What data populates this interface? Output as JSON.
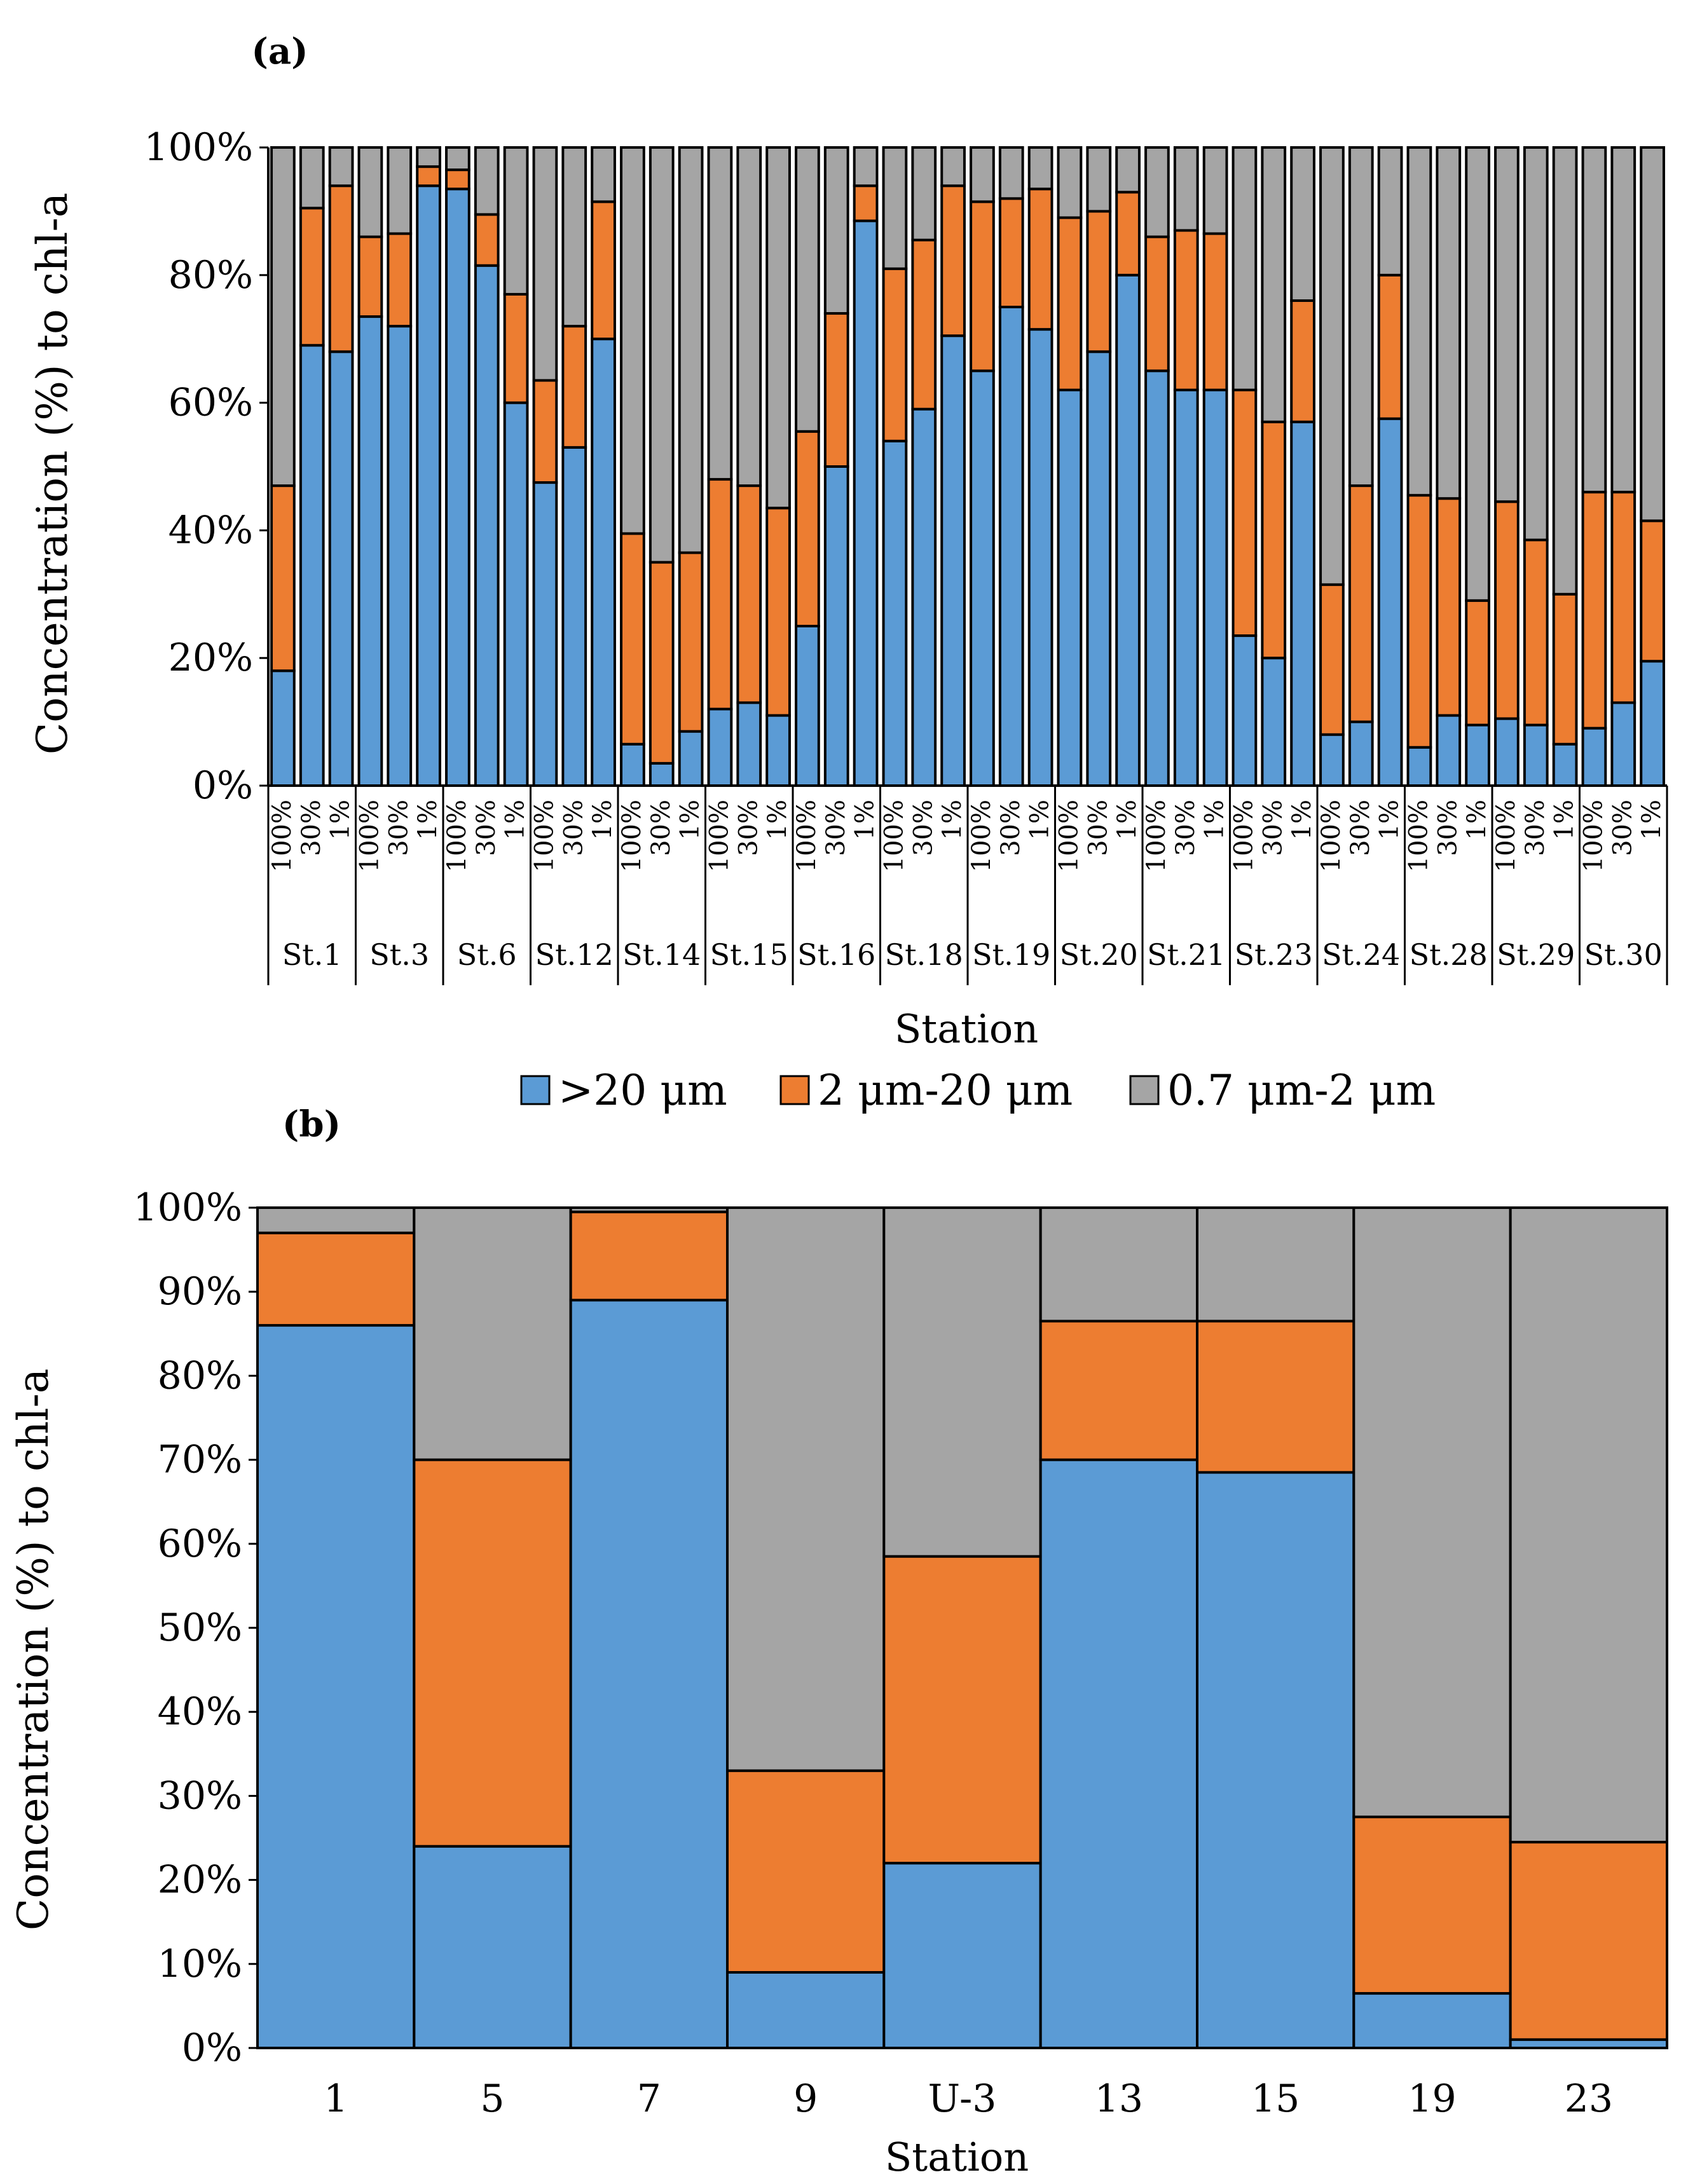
{
  "colors": {
    "gt20": "#5b9bd5",
    "mid": "#ed7d31",
    "small": "#a5a5a5",
    "outline": "#000000"
  },
  "legend": [
    {
      "key": "gt20",
      "label": ">20 μm"
    },
    {
      "key": "mid",
      "label": "2 μm-20 μm"
    },
    {
      "key": "small",
      "label": "0.7 μm-2 μm"
    }
  ],
  "chart_data": [
    {
      "type": "bar",
      "stacked": true,
      "panel_label": "(a)",
      "xlabel": "Station",
      "ylabel": "Concentration (%) to chl-a",
      "ylim": [
        0,
        100
      ],
      "yticks": [
        "0%",
        "20%",
        "40%",
        "60%",
        "80%",
        "100%"
      ],
      "depth_labels": [
        "100%",
        "30%",
        "1%"
      ],
      "stations": [
        "St.1",
        "St.3",
        "St.6",
        "St.12",
        "St.14",
        "St.15",
        "St.16",
        "St.18",
        "St.19",
        "St.20",
        "St.21",
        "St.23",
        "St.24",
        "St.28",
        "St.29",
        "St.30"
      ],
      "series": [
        {
          "name": ">20 μm",
          "key": "gt20",
          "values": [
            18,
            69,
            68,
            73.5,
            72,
            94,
            93.5,
            81.5,
            60,
            47.5,
            53,
            70,
            6.5,
            3.5,
            8.5,
            12,
            13,
            11,
            25,
            50,
            88.5,
            54,
            59,
            70.5,
            65,
            75,
            71.5,
            62,
            68,
            80,
            65,
            62,
            62,
            23.5,
            20,
            57,
            8,
            10,
            57.5,
            6,
            11,
            9.5,
            10.5,
            9.5,
            6.5,
            9,
            13,
            19.5
          ]
        },
        {
          "name": "2 μm-20 μm",
          "key": "mid",
          "values": [
            29,
            21.5,
            26,
            12.5,
            14.5,
            3,
            3,
            8,
            17,
            16,
            19,
            21.5,
            33,
            31.5,
            28,
            36,
            34,
            32.5,
            30.5,
            24,
            5.5,
            27,
            26.5,
            23.5,
            26.5,
            17,
            22,
            27,
            22,
            13,
            21,
            25,
            24.5,
            38.5,
            37,
            19,
            23.5,
            37,
            22.5,
            39.5,
            34,
            19.5,
            34,
            29,
            23.5,
            37,
            33,
            22
          ]
        },
        {
          "name": "0.7 μm-2 μm",
          "key": "small",
          "values": [
            53,
            9.5,
            6,
            14,
            13.5,
            3,
            3.5,
            10.5,
            23,
            36.5,
            28,
            8.5,
            60.5,
            65,
            63.5,
            52,
            53,
            56.5,
            44.5,
            26,
            6,
            19,
            14.5,
            6,
            8.5,
            8,
            6.5,
            11,
            10,
            7,
            14,
            13,
            13.5,
            38,
            43,
            24,
            68.5,
            53,
            20,
            54.5,
            55,
            71,
            55.5,
            61.5,
            70,
            54,
            54,
            58.5
          ]
        }
      ]
    },
    {
      "type": "bar",
      "stacked": true,
      "panel_label": "(b)",
      "xlabel": "Station",
      "ylabel": "Concentration (%) to chl-a",
      "ylim": [
        0,
        100
      ],
      "yticks": [
        "0%",
        "10%",
        "20%",
        "30%",
        "40%",
        "50%",
        "60%",
        "70%",
        "80%",
        "90%",
        "100%"
      ],
      "categories": [
        "1",
        "5",
        "7",
        "9",
        "U-3",
        "13",
        "15",
        "19",
        "23"
      ],
      "series": [
        {
          "name": ">20 μm",
          "key": "gt20",
          "values": [
            86,
            24,
            89,
            9,
            22,
            70,
            68.5,
            6.5,
            1
          ]
        },
        {
          "name": "2 μm-20 μm",
          "key": "mid",
          "values": [
            11,
            46,
            10.5,
            24,
            36.5,
            16.5,
            18,
            21,
            23.5
          ]
        },
        {
          "name": "0.7 μm-2 μm",
          "key": "small",
          "values": [
            3,
            30,
            0.5,
            67,
            41.5,
            13.5,
            13.5,
            72.5,
            75.5
          ]
        }
      ]
    }
  ]
}
